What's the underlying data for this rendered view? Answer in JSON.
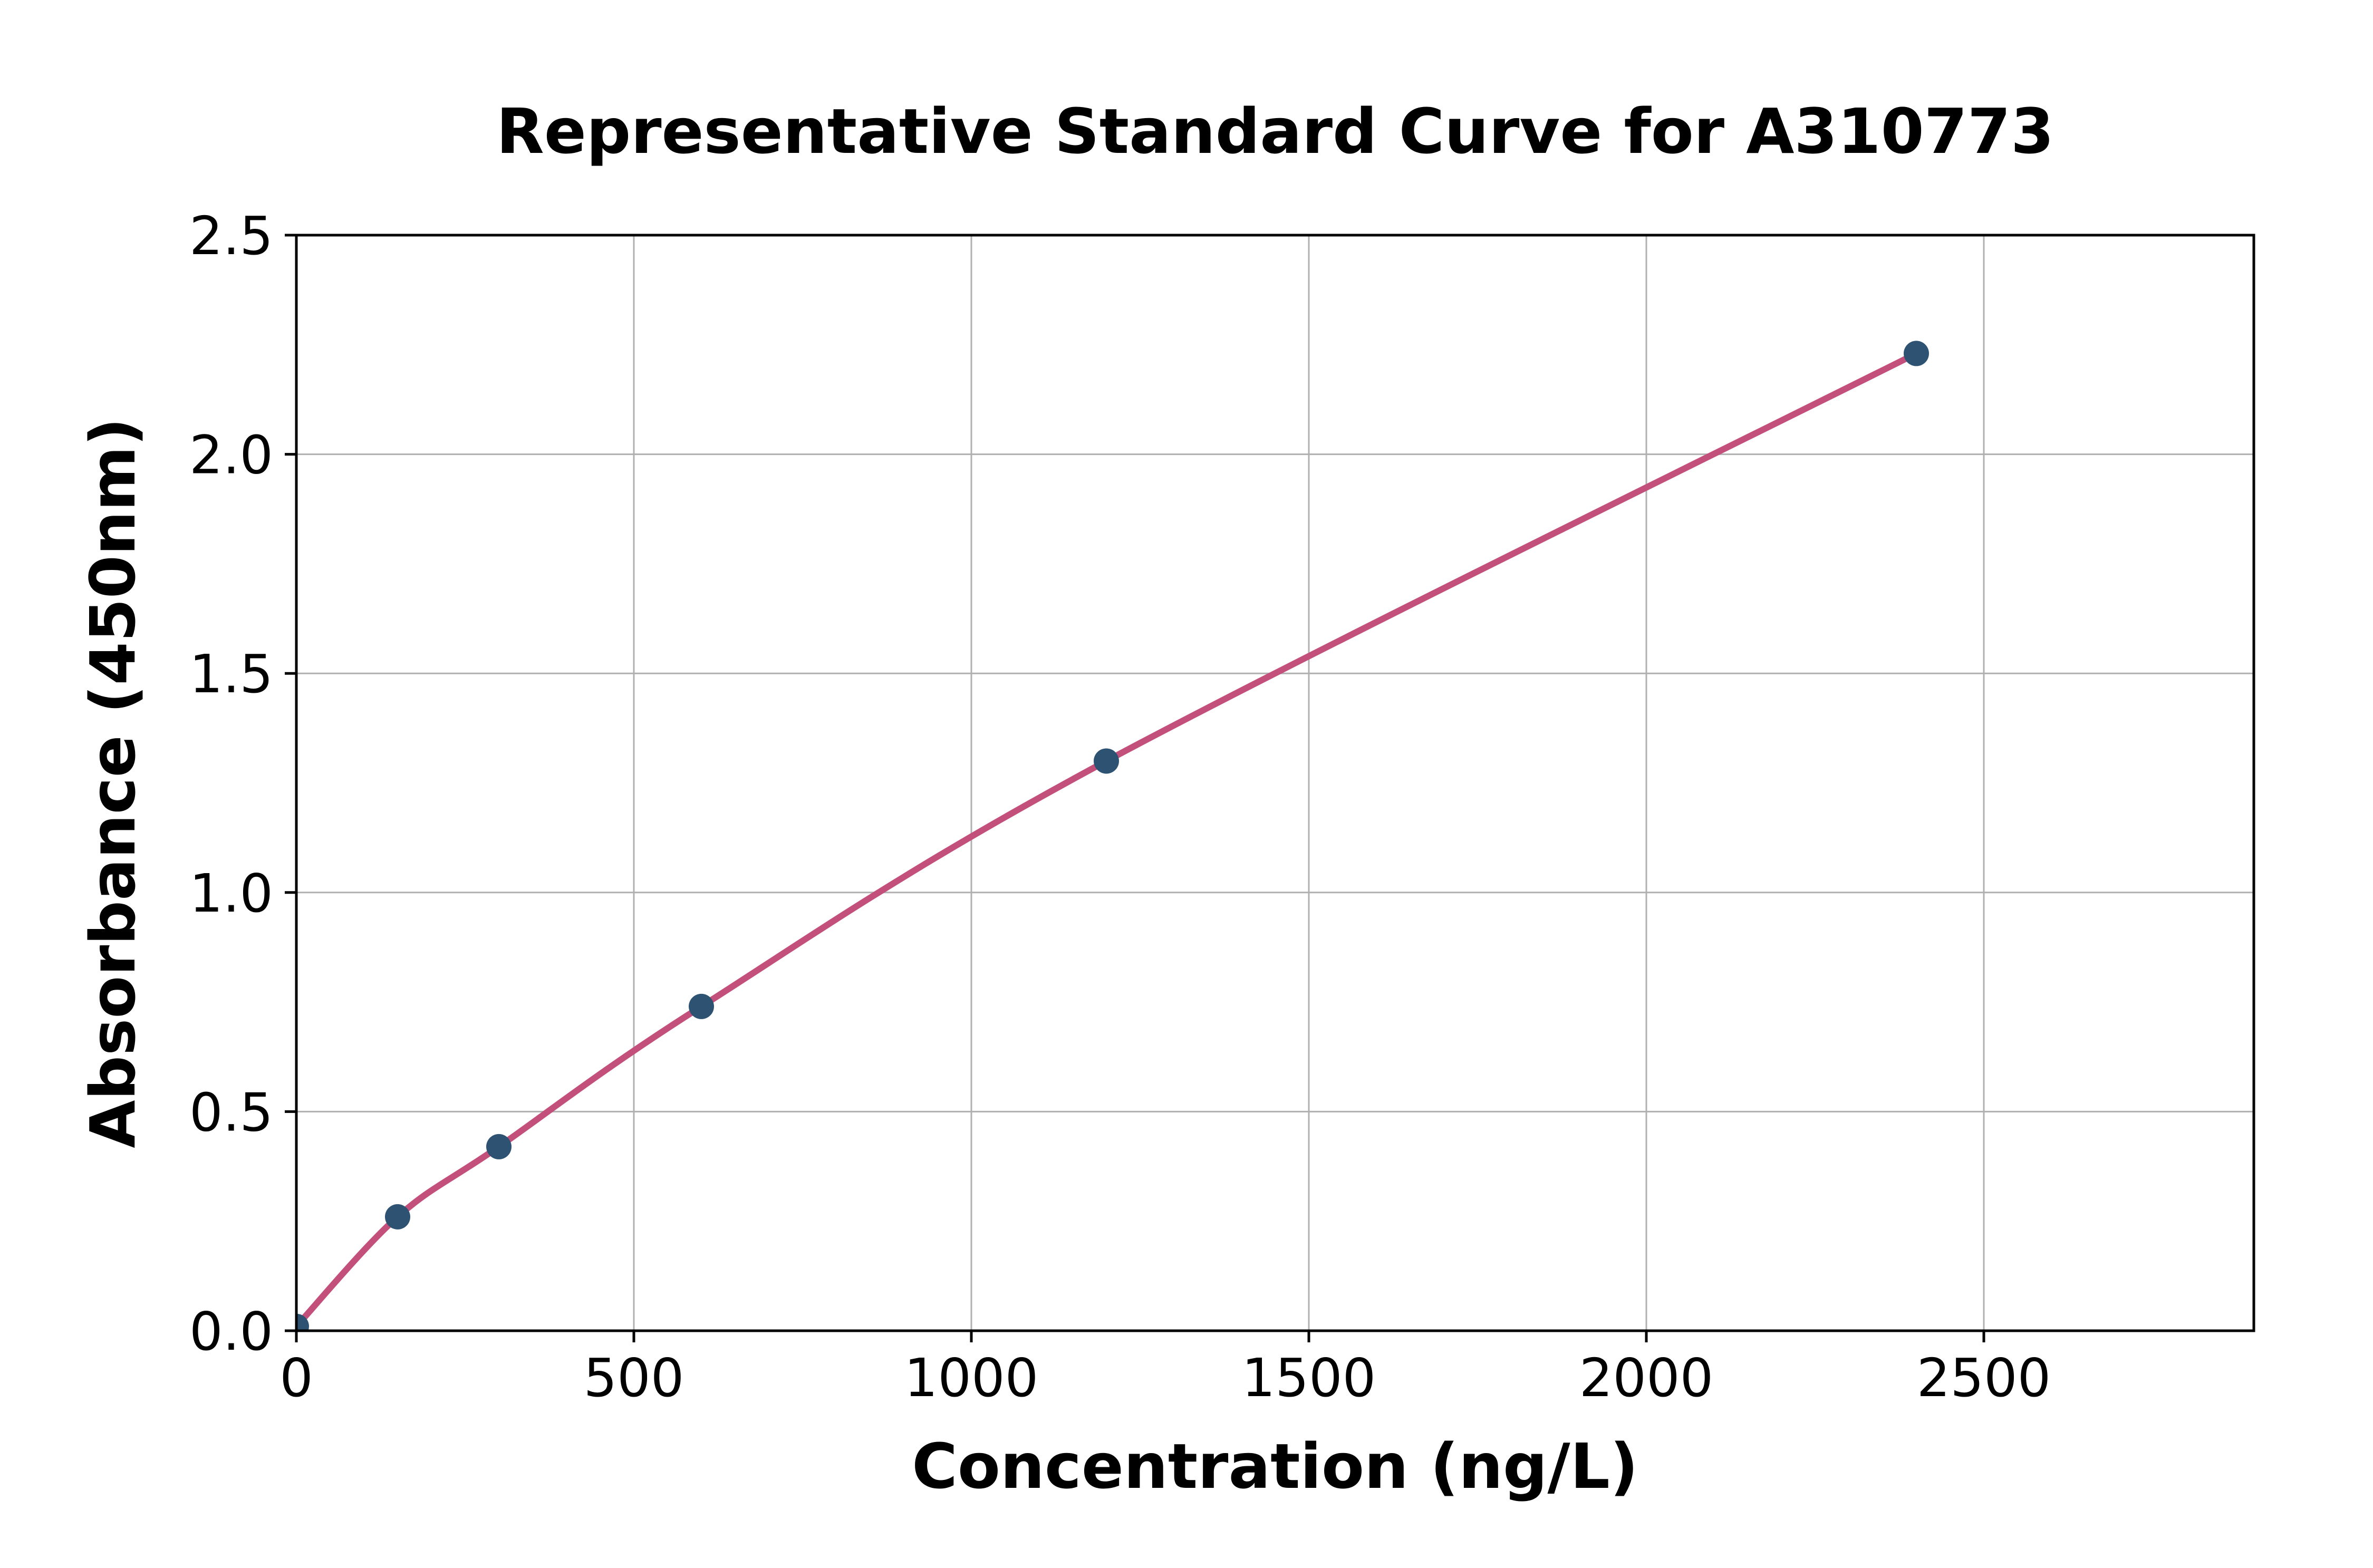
{
  "page": {
    "background": "#ffffff"
  },
  "chart_data": {
    "type": "scatter",
    "title": "Representative Standard Curve for A310773",
    "xlabel": "Concentration (ng/L)",
    "ylabel": "Absorbance (450nm)",
    "points": {
      "x": [
        0,
        150,
        300,
        600,
        1200,
        2400
      ],
      "y": [
        0.01,
        0.26,
        0.42,
        0.74,
        1.3,
        2.23
      ]
    },
    "fit_line": {
      "description": "smooth standard-curve fit passing through all points, from origin to last point",
      "color": "#c3507b",
      "width": 12
    },
    "marker": {
      "color": "#2e5271",
      "radius": 24
    },
    "xlim": [
      0,
      2900
    ],
    "ylim": [
      0,
      2.5
    ],
    "xticks": {
      "values": [
        0,
        500,
        1000,
        1500,
        2000,
        2500
      ],
      "labels": [
        "0",
        "500",
        "1000",
        "1500",
        "2000",
        "2500"
      ]
    },
    "yticks": {
      "values": [
        0,
        0.5,
        1.0,
        1.5,
        2.0,
        2.5
      ],
      "labels": [
        "0.0",
        "0.5",
        "1.0",
        "1.5",
        "2.0",
        "2.5"
      ]
    },
    "grid": {
      "show": true,
      "color": "#b0b0b0",
      "width": 3
    },
    "spine": {
      "color": "#000000",
      "width": 5
    },
    "tick_mark": {
      "color": "#000000",
      "length": 22,
      "width": 5
    },
    "legend": {
      "show": false
    }
  }
}
